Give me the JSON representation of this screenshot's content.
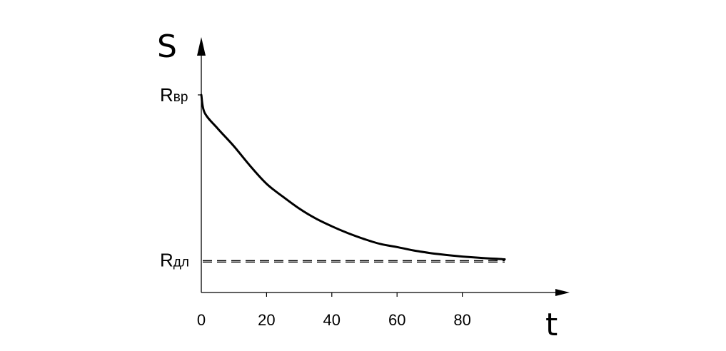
{
  "chart_data": {
    "type": "line",
    "xlabel": "t",
    "ylabel": "S",
    "x_ticks": [
      0,
      20,
      40,
      60,
      80
    ],
    "xlim": [
      0,
      112
    ],
    "ylim": [
      0,
      1.23
    ],
    "grid": false,
    "reference_levels": [
      {
        "main": "R",
        "sub": "вр",
        "value": 1.0,
        "style": "tick"
      },
      {
        "main": "R",
        "sub": "дл",
        "value": 0.165,
        "style": "dashed",
        "x_end": 93
      }
    ],
    "series": [
      {
        "x": [
          0,
          1,
          5,
          10,
          15,
          20,
          25,
          30,
          35,
          40,
          45,
          50,
          55,
          60,
          65,
          70,
          75,
          80,
          85,
          90,
          93
        ],
        "y": [
          1.0,
          0.91,
          0.83,
          0.74,
          0.64,
          0.55,
          0.485,
          0.425,
          0.375,
          0.335,
          0.3,
          0.27,
          0.245,
          0.23,
          0.213,
          0.2,
          0.19,
          0.182,
          0.176,
          0.171,
          0.168
        ]
      }
    ]
  }
}
